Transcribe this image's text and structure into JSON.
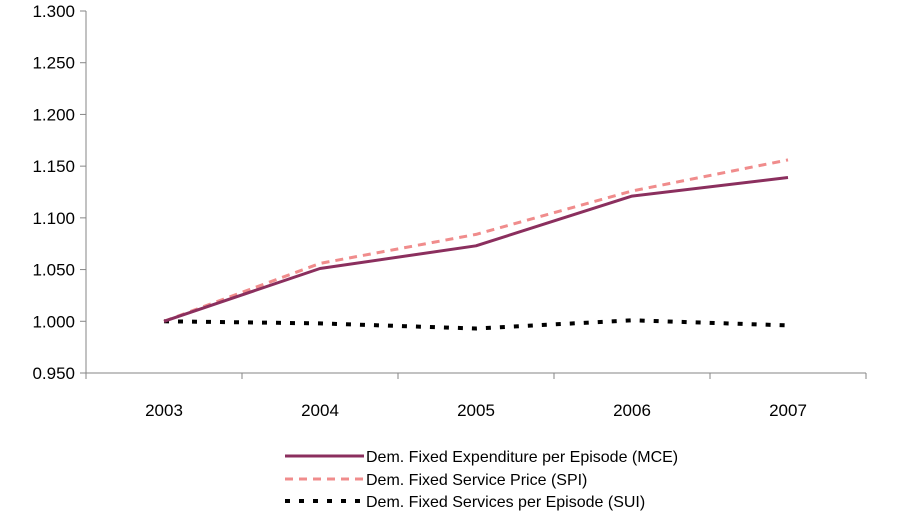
{
  "chart_data": {
    "type": "line",
    "categories": [
      "2003",
      "2004",
      "2005",
      "2006",
      "2007"
    ],
    "y_tick_labels": [
      "0.950",
      "1.000",
      "1.050",
      "1.100",
      "1.150",
      "1.200",
      "1.250",
      "1.300"
    ],
    "ylim": [
      0.95,
      1.3
    ],
    "grid": false,
    "legend_position": "bottom",
    "series": [
      {
        "name": "Dem. Fixed Expenditure per Episode (MCE)",
        "color": "#8B2F5E",
        "style": "solid",
        "values": [
          1.0,
          1.051,
          1.073,
          1.121,
          1.139
        ]
      },
      {
        "name": "Dem. Fixed Service Price (SPI)",
        "color": "#F08C8C",
        "style": "dashed",
        "values": [
          1.0,
          1.056,
          1.084,
          1.126,
          1.156
        ]
      },
      {
        "name": "Dem. Fixed Services per Episode (SUI)",
        "color": "#000000",
        "style": "dotted",
        "values": [
          1.0,
          0.998,
          0.993,
          1.001,
          0.996
        ]
      }
    ]
  }
}
